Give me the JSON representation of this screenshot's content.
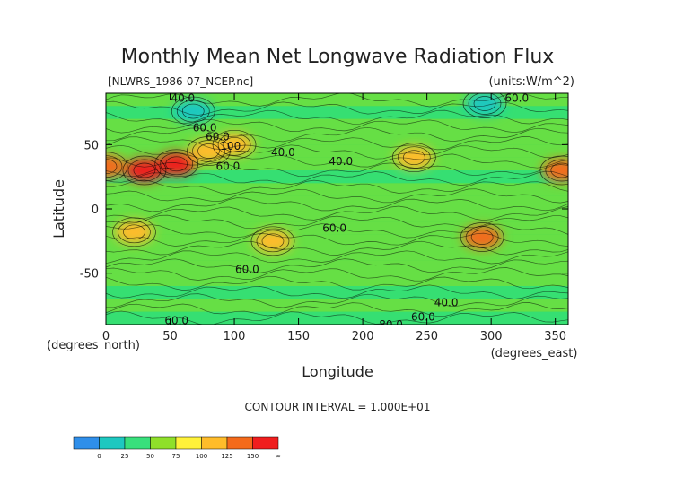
{
  "chart_data": {
    "type": "heatmap",
    "title": "Monthly Mean Net Longwave Radiation Flux",
    "file_label": "[NLWRS_1986-07_NCEP.nc]",
    "units_label": "(units:W/m^2)",
    "xlabel": "Longitude",
    "ylabel": "Latitude",
    "x_unit_note": "(degrees_east)",
    "y_unit_note": "(degrees_north)",
    "contour_interval_text": "CONTOUR INTERVAL = 1.000E+01",
    "xlim": [
      0,
      360
    ],
    "ylim": [
      -90,
      90
    ],
    "x_ticks": [
      0,
      50,
      100,
      150,
      200,
      250,
      300,
      350
    ],
    "y_ticks": [
      50,
      0,
      -50
    ],
    "colorbar": {
      "levels": [
        0,
        25,
        50,
        75,
        100,
        125,
        150
      ],
      "colors": [
        "#2f8fea",
        "#1ec8c0",
        "#38e07c",
        "#8fe02a",
        "#fff23a",
        "#ffbc2a",
        "#f46a1a",
        "#f01e1e"
      ],
      "tick_labels": [
        "0",
        "25",
        "50",
        "75",
        "100",
        "125",
        "150",
        "∞"
      ]
    },
    "contour_labels": [
      {
        "text": "40.0",
        "lon": 60,
        "lat": 86
      },
      {
        "text": "60.0",
        "lon": 77,
        "lat": 63
      },
      {
        "text": "60.0",
        "lon": 87,
        "lat": 56
      },
      {
        "text": "100",
        "lon": 97,
        "lat": 49
      },
      {
        "text": "60.0",
        "lon": 95,
        "lat": 33
      },
      {
        "text": "40.0",
        "lon": 138,
        "lat": 44
      },
      {
        "text": "40.0",
        "lon": 183,
        "lat": 37
      },
      {
        "text": "60.0",
        "lon": 178,
        "lat": -15
      },
      {
        "text": "60.0",
        "lon": 110,
        "lat": -47
      },
      {
        "text": "60.0",
        "lon": 320,
        "lat": 86
      },
      {
        "text": "40.0",
        "lon": 265,
        "lat": -73
      },
      {
        "text": "60.0",
        "lon": 55,
        "lat": -87
      },
      {
        "text": "80.0",
        "lon": 222,
        "lat": -90
      },
      {
        "text": "60.0",
        "lon": 247,
        "lat": -84
      }
    ],
    "hot_regions": [
      {
        "lon": 0,
        "lat": 33,
        "value": 145
      },
      {
        "lon": 30,
        "lat": 30,
        "value": 150
      },
      {
        "lon": 55,
        "lat": 35,
        "value": 155
      },
      {
        "lon": 80,
        "lat": 45,
        "value": 120
      },
      {
        "lon": 100,
        "lat": 50,
        "value": 105
      },
      {
        "lon": 240,
        "lat": 40,
        "value": 115
      },
      {
        "lon": 355,
        "lat": 30,
        "value": 145
      },
      {
        "lon": 22,
        "lat": -18,
        "value": 110
      },
      {
        "lon": 130,
        "lat": -25,
        "value": 100
      },
      {
        "lon": 293,
        "lat": -22,
        "value": 130
      },
      {
        "lon": 295,
        "lat": 82,
        "value": 20
      },
      {
        "lon": 68,
        "lat": 76,
        "value": 10
      }
    ]
  }
}
